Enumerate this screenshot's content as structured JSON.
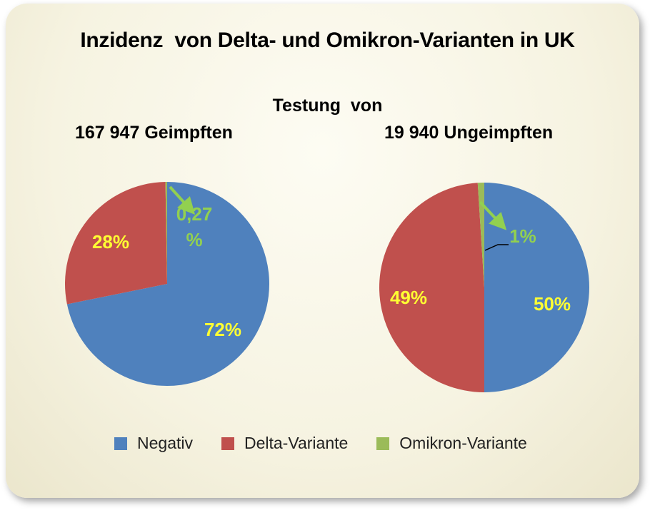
{
  "title": "Inzidenz  von Delta- und Omikron-Varianten in UK",
  "subtitle": "Testung  von",
  "colors": {
    "negativ": "#4f81bd",
    "delta": "#c0504d",
    "omikron": "#9bbb59",
    "label_yellow": "#ffff33",
    "label_green": "#92d050",
    "arrow": "#92d050"
  },
  "legend": [
    {
      "label": "Negativ",
      "color": "#4f81bd"
    },
    {
      "label": "Delta-Variante",
      "color": "#c0504d"
    },
    {
      "label": "Omikron-Variante",
      "color": "#9bbb59"
    }
  ],
  "chart_data": [
    {
      "type": "pie",
      "title": "167 947 Geimpften",
      "start_angle_deg": 0,
      "direction": "clockwise",
      "slices": [
        {
          "name": "Negativ",
          "value": 72,
          "label": "72%"
        },
        {
          "name": "Delta-Variante",
          "value": 28,
          "label": "28%"
        },
        {
          "name": "Omikron-Variante",
          "value": 0.27,
          "label": "0,27\n%"
        }
      ]
    },
    {
      "type": "pie",
      "title": "19 940 Ungeimpften",
      "start_angle_deg": 0,
      "direction": "clockwise",
      "slices": [
        {
          "name": "Negativ",
          "value": 50,
          "label": "50%"
        },
        {
          "name": "Delta-Variante",
          "value": 49,
          "label": "49%"
        },
        {
          "name": "Omikron-Variante",
          "value": 1,
          "label": "1%"
        }
      ]
    }
  ]
}
